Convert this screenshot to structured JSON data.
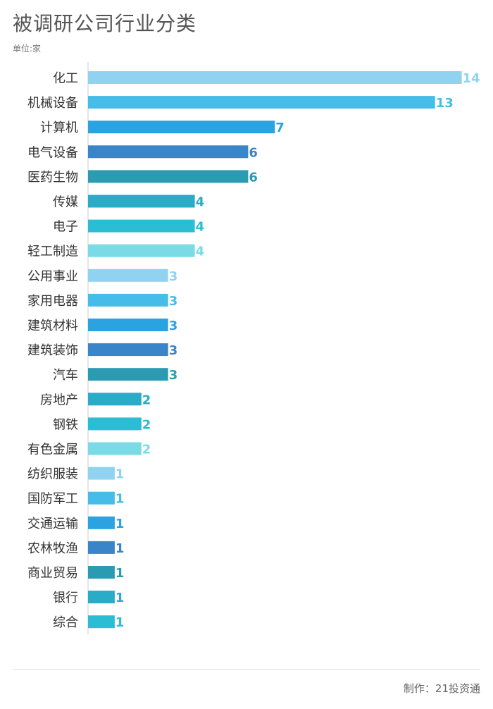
{
  "title": "被调研公司行业分类",
  "unit": "单位:家",
  "source": "制作：21投资通",
  "chart_data": {
    "type": "bar",
    "orientation": "horizontal",
    "title": "被调研公司行业分类",
    "categories": [
      "化工",
      "机械设备",
      "计算机",
      "电气设备",
      "医药生物",
      "传媒",
      "电子",
      "轻工制造",
      "公用事业",
      "家用电器",
      "建筑材料",
      "建筑装饰",
      "汽车",
      "房地产",
      "钢铁",
      "有色金属",
      "纺织服装",
      "国防军工",
      "交通运输",
      "农林牧渔",
      "商业贸易",
      "银行",
      "综合"
    ],
    "values": [
      14,
      13,
      7,
      6,
      6,
      4,
      4,
      4,
      3,
      3,
      3,
      3,
      3,
      2,
      2,
      2,
      1,
      1,
      1,
      1,
      1,
      1,
      1
    ],
    "xlim": [
      0,
      14
    ],
    "grid": false,
    "colors": [
      "#8fd3f0",
      "#45bde8",
      "#2aa3e0",
      "#3a84c9",
      "#2a9bb0",
      "#2aabc8",
      "#2bbdd4",
      "#7adbe6"
    ]
  }
}
